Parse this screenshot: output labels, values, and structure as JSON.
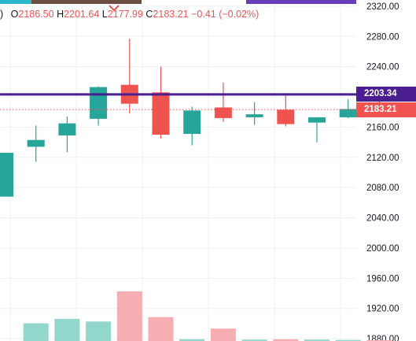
{
  "colors": {
    "up": "#26a69a",
    "down": "#ef5350",
    "up_volume": "#93d6cc",
    "down_volume": "#f6aeb2",
    "alert_line": "#4a1e91",
    "last_price": "#f05350",
    "grid": "#eef0f3",
    "top_bar": [
      "#2ab8cf",
      "#6d4c41",
      "#6a3db8"
    ]
  },
  "legend": {
    "paren": ")",
    "open_label": "O",
    "open": "2186.50",
    "high_label": "H",
    "high": "2201.64",
    "low_label": "L",
    "low": "2177.99",
    "close_label": "C",
    "close": "2183.21",
    "change": "−0.41",
    "change_pct": "(−0.02%)"
  },
  "price_tags": {
    "alert": "2203.34",
    "last": "2183.21"
  },
  "chart_data": {
    "type": "candlestick",
    "y_axis": {
      "ticks": [
        1880,
        1920,
        1960,
        2000,
        2040,
        2080,
        2120,
        2160,
        2200,
        2240,
        2280,
        2320
      ],
      "tick_labels": [
        "1880.00",
        "1920.00",
        "1960.00",
        "2000.00",
        "2040.00",
        "2080.00",
        "2120.00",
        "2160.00",
        "2200.00",
        "2240.00",
        "2280.00",
        "2320.00"
      ],
      "range": [
        1877,
        2323
      ]
    },
    "alert_level": 2203.34,
    "last_price": 2183.21,
    "candles": [
      {
        "open": 2068,
        "high": 2126,
        "low": 2068,
        "close": 2126
      },
      {
        "open": 2134,
        "high": 2162,
        "low": 2114,
        "close": 2143
      },
      {
        "open": 2149,
        "high": 2174,
        "low": 2127,
        "close": 2165
      },
      {
        "open": 2171,
        "high": 2214,
        "low": 2162,
        "close": 2213
      },
      {
        "open": 2216,
        "high": 2277,
        "low": 2178,
        "close": 2191
      },
      {
        "open": 2206,
        "high": 2240,
        "low": 2145,
        "close": 2150
      },
      {
        "open": 2151,
        "high": 2187,
        "low": 2136,
        "close": 2182
      },
      {
        "open": 2186,
        "high": 2219,
        "low": 2167,
        "close": 2172
      },
      {
        "open": 2173,
        "high": 2193,
        "low": 2163,
        "close": 2177
      },
      {
        "open": 2183,
        "high": 2205,
        "low": 2161,
        "close": 2164
      },
      {
        "open": 2166,
        "high": 2173,
        "low": 2140,
        "close": 2173
      },
      {
        "open": 2173,
        "high": 2197,
        "low": 2172,
        "close": 2184
      },
      {
        "open": 2187,
        "high": 2201.64,
        "low": 2177.99,
        "close": 2183.21
      }
    ],
    "volume": [
      null,
      1.0,
      1.25,
      1.1,
      2.8,
      1.35,
      0.1,
      0.7,
      0.08,
      0.1,
      0.08,
      0.06,
      0.05
    ]
  }
}
